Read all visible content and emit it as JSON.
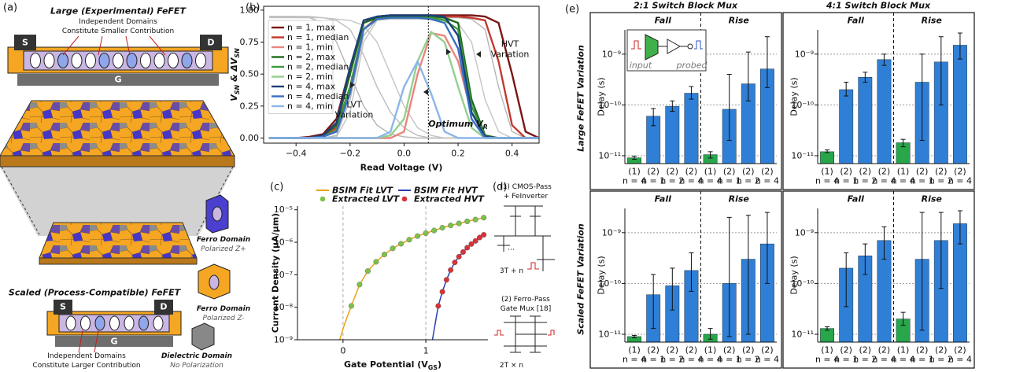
{
  "figure": {
    "panel_a": {
      "label": "(a)",
      "large_title": "Large (Experimental) FeFET",
      "large_terminals": [
        "S",
        "D",
        "G"
      ],
      "large_note": [
        "Independent Domains",
        "Constitute Smaller Contribution"
      ],
      "scaled_title": "Scaled (Process-Compatible) FeFET",
      "scaled_terminals": [
        "S",
        "D",
        "G"
      ],
      "scaled_note": [
        "Independent Domains",
        "Constitute Larger Contribution"
      ],
      "legend": [
        {
          "name": "Ferro Domain",
          "desc": "Polarized Z+"
        },
        {
          "name": "Ferro Domain",
          "desc": "Polarized Z-"
        },
        {
          "name": "Dielectric Domain",
          "desc": "No Polarization"
        }
      ]
    },
    "panel_d": {
      "label": "(d)",
      "first": [
        "(1) CMOS-Pass",
        "+ FeInverter"
      ],
      "first_count": "3T + n",
      "second": [
        "(2) Ferro-Pass",
        "Gate Mux [18]"
      ],
      "second_count": "2T × n"
    },
    "panel_e": {
      "label": "(e)",
      "columns": [
        "2:1 Switch Block Mux",
        "4:1 Switch Block Mux"
      ],
      "rows": [
        "Large FeFET Variation",
        "Scaled FeFET Variation"
      ],
      "inset": [
        "input",
        "probed"
      ]
    }
  },
  "chart_data": [
    {
      "type": "line",
      "panel": "(b)",
      "xlabel": "Read Voltage (V)",
      "ylabel": [
        "V",
        "SN",
        " & ΔV",
        "SN"
      ],
      "x": [
        -0.5,
        -0.45,
        -0.4,
        -0.35,
        -0.3,
        -0.25,
        -0.2,
        -0.15,
        -0.1,
        -0.05,
        0,
        0.05,
        0.1,
        0.15,
        0.2,
        0.25,
        0.3,
        0.35,
        0.4,
        0.45,
        0.5
      ],
      "xlim": [
        -0.52,
        0.5
      ],
      "ylim": [
        -0.04,
        1.03
      ],
      "xticks": [
        {
          "value": -0.4,
          "label": "−0.4"
        },
        {
          "value": -0.2,
          "label": "−0.2"
        },
        {
          "value": 0,
          "label": "0.0"
        },
        0.2,
        0.4
      ],
      "yticks": [
        {
          "value": 0,
          "label": "0.00"
        },
        0.25,
        {
          "value": 0.5,
          "label": "0.50"
        },
        0.75,
        {
          "value": 1,
          "label": "1.00"
        }
      ],
      "series": [
        {
          "name": "n = 1, max",
          "color": "#7a1616",
          "values": [
            0,
            0,
            0,
            0.01,
            0.03,
            0.15,
            0.55,
            0.9,
            0.95,
            0.96,
            0.96,
            0.96,
            0.96,
            0.96,
            0.96,
            0.96,
            0.95,
            0.9,
            0.5,
            0.05,
            0
          ]
        },
        {
          "name": "n = 1, median",
          "color": "#c23a2e",
          "values": [
            0,
            0,
            0,
            0,
            0.02,
            0.08,
            0.4,
            0.85,
            0.94,
            0.95,
            0.95,
            0.95,
            0.95,
            0.95,
            0.95,
            0.94,
            0.92,
            0.6,
            0.1,
            0,
            0
          ]
        },
        {
          "name": "n = 1, min",
          "color": "#e8867e",
          "values": [
            0,
            0,
            0,
            0,
            0,
            0,
            0,
            0,
            0,
            0,
            0.05,
            0.5,
            0.82,
            0.8,
            0.6,
            0.2,
            0.02,
            0,
            0,
            0,
            0
          ]
        },
        {
          "name": "n = 2, max",
          "color": "#1d6a1d",
          "values": [
            0,
            0,
            0,
            0,
            0.02,
            0.1,
            0.5,
            0.9,
            0.94,
            0.95,
            0.95,
            0.95,
            0.95,
            0.94,
            0.9,
            0.3,
            0.02,
            0,
            0,
            0,
            0
          ]
        },
        {
          "name": "n = 2, median",
          "color": "#3c9a3c",
          "values": [
            0,
            0,
            0,
            0,
            0.01,
            0.06,
            0.4,
            0.85,
            0.93,
            0.94,
            0.94,
            0.94,
            0.94,
            0.92,
            0.85,
            0.25,
            0.01,
            0,
            0,
            0,
            0
          ]
        },
        {
          "name": "n = 2, min",
          "color": "#93d08f",
          "values": [
            0,
            0,
            0,
            0,
            0,
            0,
            0,
            0,
            0,
            0.02,
            0.15,
            0.6,
            0.83,
            0.75,
            0.4,
            0.08,
            0,
            0,
            0,
            0,
            0
          ]
        },
        {
          "name": "n = 4, max",
          "color": "#1b3f7a",
          "values": [
            0,
            0,
            0,
            0,
            0.02,
            0.12,
            0.55,
            0.92,
            0.95,
            0.96,
            0.96,
            0.96,
            0.96,
            0.95,
            0.8,
            0.2,
            0.01,
            0,
            0,
            0,
            0
          ]
        },
        {
          "name": "n = 4, median",
          "color": "#3a6fc0",
          "values": [
            0,
            0,
            0,
            0,
            0.01,
            0.05,
            0.35,
            0.85,
            0.93,
            0.94,
            0.94,
            0.94,
            0.93,
            0.9,
            0.7,
            0.15,
            0,
            0,
            0,
            0,
            0
          ]
        },
        {
          "name": "n = 4, min",
          "color": "#8bb6e8",
          "values": [
            0,
            0,
            0,
            0,
            0,
            0,
            0,
            0,
            0,
            0.05,
            0.4,
            0.6,
            0.35,
            0.05,
            0,
            0,
            0,
            0,
            0,
            0,
            0
          ]
        }
      ],
      "variation_series": [
        {
          "color": "#b4b4b4",
          "values": [
            0.95,
            0.95,
            0.95,
            0.94,
            0.9,
            0.75,
            0.5,
            0.25,
            0.1,
            0.03,
            0.01,
            0,
            0,
            0,
            0,
            0,
            0,
            0,
            0,
            0,
            0
          ]
        },
        {
          "color": "#bcbcbc",
          "values": [
            0.95,
            0.95,
            0.95,
            0.95,
            0.94,
            0.92,
            0.85,
            0.65,
            0.4,
            0.2,
            0.08,
            0.02,
            0,
            0,
            0,
            0,
            0,
            0,
            0,
            0,
            0
          ]
        },
        {
          "color": "#c4c4c4",
          "values": [
            0.94,
            0.94,
            0.94,
            0.94,
            0.94,
            0.93,
            0.92,
            0.88,
            0.75,
            0.5,
            0.25,
            0.08,
            0.02,
            0,
            0,
            0,
            0,
            0,
            0,
            0,
            0
          ]
        },
        {
          "color": "#b4b4b4",
          "values": [
            0,
            0,
            0,
            0,
            0,
            0.02,
            0.3,
            0.8,
            0.93,
            0.94,
            0.94,
            0.94,
            0.94,
            0.94,
            0.94,
            0.93,
            0.85,
            0.4,
            0.05,
            0,
            0
          ]
        },
        {
          "color": "#c4c4c4",
          "values": [
            0,
            0,
            0,
            0,
            0,
            0.01,
            0.2,
            0.75,
            0.92,
            0.93,
            0.93,
            0.93,
            0.93,
            0.93,
            0.9,
            0.75,
            0.3,
            0.05,
            0,
            0,
            0
          ]
        }
      ],
      "annotations": [
        [
          "HVT",
          "Variation"
        ],
        [
          "LVT",
          "Variation"
        ]
      ],
      "optimum_label": [
        "Optimum V",
        "R"
      ],
      "optimum_x": 0.09
    },
    {
      "type": "scatter",
      "panel": "(c)",
      "xlabel": [
        "Gate Potential (V",
        "GS",
        ")"
      ],
      "ylabel": "Current Density (μA/μm)",
      "log": true,
      "grid": "x",
      "xlim": [
        -0.55,
        1.75
      ],
      "ylim": [
        1e-09,
        1.3e-05
      ],
      "xticks": [
        0,
        1
      ],
      "yticks": [
        {
          "value": 1e-09,
          "label": "10⁻⁹"
        },
        {
          "value": 1e-08,
          "label": "10⁻⁸"
        },
        {
          "value": 1e-07,
          "label": "10⁻⁷"
        },
        {
          "value": 1e-06,
          "label": "10⁻⁶"
        },
        {
          "value": 1e-05,
          "label": "10⁻⁵"
        }
      ],
      "series": [
        {
          "name": "BSIM Fit LVT",
          "style": "line",
          "color": "#e8a317",
          "x": [
            -0.04,
            0,
            0.05,
            0.1,
            0.2,
            0.3,
            0.4,
            0.5,
            0.6,
            0.7,
            0.8,
            0.9,
            1.0,
            1.1,
            1.2,
            1.3,
            1.4,
            1.5,
            1.6,
            1.7
          ],
          "values": [
            1e-09,
            2.2e-09,
            5e-09,
            1.1e-08,
            5e-08,
            1.3e-07,
            2.5e-07,
            4.2e-07,
            6.5e-07,
            9e-07,
            1.2e-06,
            1.55e-06,
            1.9e-06,
            2.3e-06,
            2.8e-06,
            3.3e-06,
            3.8e-06,
            4.4e-06,
            5e-06,
            5.7e-06
          ]
        },
        {
          "name": "BSIM Fit HVT",
          "style": "line",
          "color": "#2a3fae",
          "x": [
            1.08,
            1.1,
            1.15,
            1.2,
            1.25,
            1.3,
            1.35,
            1.4,
            1.45,
            1.5,
            1.55,
            1.6,
            1.65,
            1.7
          ],
          "values": [
            1e-09,
            2e-09,
            1.1e-08,
            3e-08,
            7e-08,
            1.4e-07,
            2.4e-07,
            3.6e-07,
            5e-07,
            6.8e-07,
            8.8e-07,
            1.1e-06,
            1.4e-06,
            1.7e-06
          ]
        },
        {
          "name": "Extracted LVT",
          "style": "markers",
          "color": "#7cc24a",
          "x": [
            0.1,
            0.2,
            0.3,
            0.4,
            0.5,
            0.6,
            0.7,
            0.8,
            0.9,
            1.0,
            1.1,
            1.2,
            1.3,
            1.4,
            1.5,
            1.6,
            1.7
          ],
          "values": [
            1.1e-08,
            5e-08,
            1.3e-07,
            2.5e-07,
            4.2e-07,
            6.5e-07,
            9e-07,
            1.2e-06,
            1.55e-06,
            1.9e-06,
            2.3e-06,
            2.8e-06,
            3.3e-06,
            3.8e-06,
            4.4e-06,
            5e-06,
            5.7e-06
          ]
        },
        {
          "name": "Extracted HVT",
          "style": "markers",
          "color": "#d8323a",
          "x": [
            1.15,
            1.2,
            1.25,
            1.3,
            1.35,
            1.4,
            1.45,
            1.5,
            1.55,
            1.6,
            1.65,
            1.7
          ],
          "values": [
            1.1e-08,
            3e-08,
            7e-08,
            1.4e-07,
            2.4e-07,
            3.6e-07,
            5e-07,
            6.8e-07,
            8.8e-07,
            1.1e-06,
            1.4e-06,
            1.7e-06
          ]
        }
      ]
    },
    {
      "type": "bar",
      "log": true,
      "ylabel": "Delay (s)",
      "groups": [
        "Fall",
        "Rise"
      ],
      "categories": [
        [
          "(1)",
          "n = 4"
        ],
        [
          "(2)",
          "n = 1"
        ],
        [
          "(2)",
          "n = 2"
        ],
        [
          "(2)",
          "n = 4"
        ],
        [
          "(1)",
          "n = 4"
        ],
        [
          "(2)",
          "n = 1"
        ],
        [
          "(2)",
          "n = 2"
        ],
        [
          "(2)",
          "n = 4"
        ]
      ],
      "colors": [
        "#27a64a",
        "#2f7fd6",
        "#2f7fd6",
        "#2f7fd6",
        "#27a64a",
        "#2f7fd6",
        "#2f7fd6",
        "#2f7fd6"
      ],
      "values": [
        9.1e-12,
        6e-11,
        9.4e-11,
        1.7e-10,
        1.05e-11,
        8.2e-11,
        2.6e-10,
        5.1e-10
      ],
      "lower": [
        8.5e-12,
        3.9e-11,
        7.5e-11,
        1.3e-10,
        9e-12,
        2e-11,
        1.2e-10,
        2.2e-10
      ],
      "upper": [
        9.8e-12,
        8.5e-11,
        1.2e-10,
        2.3e-10,
        1.2e-11,
        4e-10,
        1.1e-09,
        2.2e-09
      ],
      "ylim": [
        7e-12,
        3e-09
      ],
      "yticks": [
        {
          "value": 1e-11,
          "label": "10⁻¹¹"
        },
        {
          "value": 1e-10,
          "label": "10⁻¹⁰"
        },
        {
          "value": 1e-09,
          "label": "10⁻⁹"
        }
      ]
    },
    {
      "type": "bar",
      "log": true,
      "ylabel": "Delay (s)",
      "groups": [
        "Fall",
        "Rise"
      ],
      "categories": [
        [
          "(1)",
          "n = 4"
        ],
        [
          "(2)",
          "n = 1"
        ],
        [
          "(2)",
          "n = 2"
        ],
        [
          "(2)",
          "n = 4"
        ],
        [
          "(1)",
          "n = 4"
        ],
        [
          "(2)",
          "n = 1"
        ],
        [
          "(2)",
          "n = 2"
        ],
        [
          "(2)",
          "n = 4"
        ]
      ],
      "colors": [
        "#27a64a",
        "#2f7fd6",
        "#2f7fd6",
        "#2f7fd6",
        "#27a64a",
        "#2f7fd6",
        "#2f7fd6",
        "#2f7fd6"
      ],
      "values": [
        1.2e-11,
        2e-10,
        3.5e-10,
        7.8e-10,
        1.8e-11,
        2.8e-10,
        7e-10,
        1.5e-09
      ],
      "lower": [
        1.15e-11,
        1.5e-10,
        2.8e-10,
        6e-10,
        1.5e-11,
        2e-11,
        1e-10,
        8e-10
      ],
      "upper": [
        1.3e-11,
        2.8e-10,
        4.4e-10,
        1e-09,
        2.1e-11,
        1e-09,
        2.2e-09,
        2.6e-09
      ],
      "ylim": [
        7e-12,
        3e-09
      ],
      "yticks": [
        {
          "value": 1e-11,
          "label": "10⁻¹¹"
        },
        {
          "value": 1e-10,
          "label": "10⁻¹⁰"
        },
        {
          "value": 1e-09,
          "label": "10⁻⁹"
        }
      ]
    },
    {
      "type": "bar",
      "log": true,
      "ylabel": "Delay (s)",
      "groups": [
        "Fall",
        "Rise"
      ],
      "categories": [
        [
          "(1)",
          "n = 4"
        ],
        [
          "(2)",
          "n = 1"
        ],
        [
          "(2)",
          "n = 2"
        ],
        [
          "(2)",
          "n = 4"
        ],
        [
          "(1)",
          "n = 4"
        ],
        [
          "(2)",
          "n = 1"
        ],
        [
          "(2)",
          "n = 2"
        ],
        [
          "(2)",
          "n = 4"
        ]
      ],
      "colors": [
        "#27a64a",
        "#2f7fd6",
        "#2f7fd6",
        "#2f7fd6",
        "#27a64a",
        "#2f7fd6",
        "#2f7fd6",
        "#2f7fd6"
      ],
      "values": [
        9e-12,
        6e-11,
        9e-11,
        1.8e-10,
        1e-11,
        1e-10,
        3e-10,
        6e-10
      ],
      "lower": [
        8.5e-12,
        1.3e-11,
        3e-11,
        7e-11,
        8e-12,
        9e-12,
        1e-11,
        1e-10
      ],
      "upper": [
        9.5e-12,
        1.5e-10,
        2e-10,
        4e-10,
        1.3e-11,
        2e-09,
        2.2e-09,
        2.5e-09
      ],
      "ylim": [
        7e-12,
        3e-09
      ],
      "yticks": [
        {
          "value": 1e-11,
          "label": "10⁻¹¹"
        },
        {
          "value": 1e-10,
          "label": "10⁻¹⁰"
        },
        {
          "value": 1e-09,
          "label": "10⁻⁹"
        }
      ]
    },
    {
      "type": "bar",
      "log": true,
      "ylabel": "Delay (s)",
      "groups": [
        "Fall",
        "Rise"
      ],
      "categories": [
        [
          "(1)",
          "n = 4"
        ],
        [
          "(2)",
          "n = 1"
        ],
        [
          "(2)",
          "n = 2"
        ],
        [
          "(2)",
          "n = 4"
        ],
        [
          "(1)",
          "n = 4"
        ],
        [
          "(2)",
          "n = 1"
        ],
        [
          "(2)",
          "n = 2"
        ],
        [
          "(2)",
          "n = 4"
        ]
      ],
      "colors": [
        "#27a64a",
        "#2f7fd6",
        "#2f7fd6",
        "#2f7fd6",
        "#27a64a",
        "#2f7fd6",
        "#2f7fd6",
        "#2f7fd6"
      ],
      "values": [
        1.3e-11,
        2e-10,
        3.5e-10,
        7e-10,
        2e-11,
        3e-10,
        7e-10,
        1.5e-09
      ],
      "lower": [
        1.2e-11,
        3.5e-11,
        1.5e-10,
        3e-10,
        1.5e-11,
        1.2e-11,
        8e-11,
        6e-10
      ],
      "upper": [
        1.4e-11,
        4e-10,
        6e-10,
        1.3e-09,
        2.7e-11,
        2.5e-09,
        2.5e-09,
        2.7e-09
      ],
      "ylim": [
        7e-12,
        3e-09
      ],
      "yticks": [
        {
          "value": 1e-11,
          "label": "10⁻¹¹"
        },
        {
          "value": 1e-10,
          "label": "10⁻¹⁰"
        },
        {
          "value": 1e-09,
          "label": "10⁻⁹"
        }
      ]
    }
  ]
}
